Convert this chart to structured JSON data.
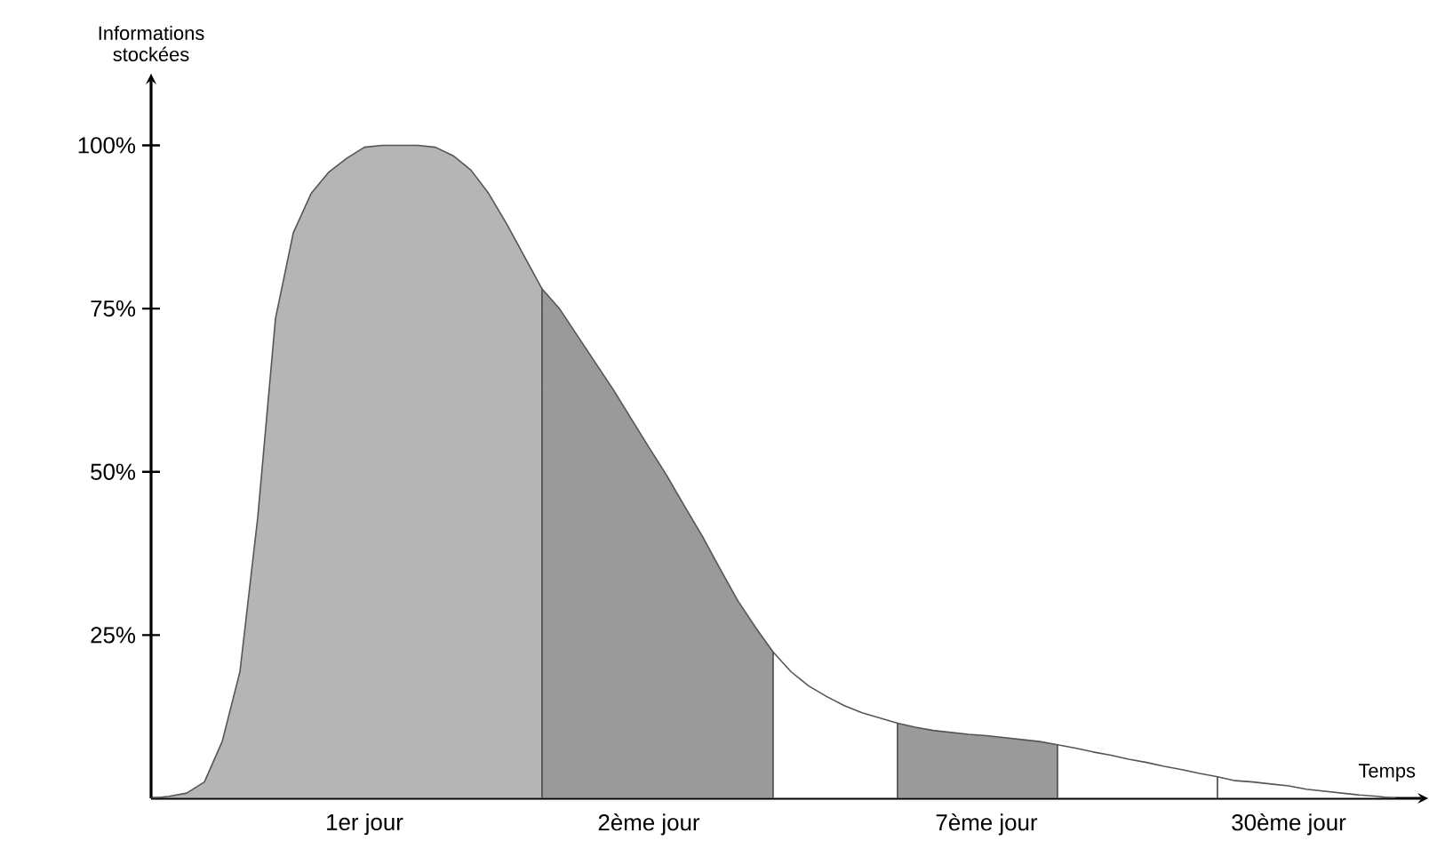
{
  "chart_data": {
    "type": "area",
    "ylabel": "Informations stockées",
    "xlabel": "Temps",
    "categories": [
      null,
      null,
      null,
      null,
      null,
      null,
      null,
      null,
      null,
      null,
      null,
      null,
      "1er jour",
      null,
      null,
      null,
      null,
      null,
      null,
      null,
      null,
      null,
      null,
      null,
      null,
      null,
      null,
      null,
      "2ème jour",
      null,
      null,
      null,
      null,
      null,
      null,
      null,
      null,
      null,
      null,
      null,
      null,
      null,
      null,
      null,
      null,
      null,
      null,
      "7ème jour",
      null,
      null,
      null,
      null,
      null,
      null,
      null,
      null,
      null,
      null,
      null,
      null,
      null,
      null,
      null,
      null,
      "30ème jour",
      null,
      null,
      null,
      null,
      null,
      null
    ],
    "ylim": [
      0,
      110
    ],
    "yticks": [
      {
        "value": 25,
        "label": "25%"
      },
      {
        "value": 50,
        "label": "50%"
      },
      {
        "value": 75,
        "label": "75%"
      },
      {
        "value": 100,
        "label": "100%"
      }
    ],
    "series": [
      {
        "color": "#b5b5b5",
        "values": [
          0,
          0.3,
          0.8,
          2.5,
          8.7,
          19.4,
          43,
          73.5,
          86.6,
          92.6,
          95.9,
          98,
          99.7,
          100,
          100,
          100,
          99.7,
          98.4,
          96.2,
          92.6,
          88,
          83,
          78,
          null,
          null,
          null,
          null,
          null,
          null,
          null,
          null,
          null,
          null,
          null,
          null,
          null,
          null,
          null,
          null,
          null,
          null,
          null,
          null,
          null,
          null,
          null,
          null,
          null,
          null,
          null,
          null,
          null,
          null,
          null,
          null,
          null,
          null,
          null,
          null,
          null,
          null,
          null,
          null,
          null,
          null,
          null,
          null,
          null,
          null,
          null,
          null
        ]
      },
      {
        "color": "#9a9a9a",
        "values": [
          null,
          null,
          null,
          null,
          null,
          null,
          null,
          null,
          null,
          null,
          null,
          null,
          null,
          null,
          null,
          null,
          null,
          null,
          null,
          null,
          null,
          null,
          78,
          74.9,
          70.8,
          66.7,
          62.6,
          58.2,
          53.8,
          49.5,
          44.8,
          40.2,
          35.2,
          30.3,
          26.2,
          22.4,
          null,
          null,
          null,
          null,
          null,
          null,
          null,
          null,
          null,
          null,
          null,
          null,
          null,
          null,
          null,
          null,
          null,
          null,
          null,
          null,
          null,
          null,
          null,
          null,
          null,
          null,
          null,
          null,
          null,
          null,
          null,
          null,
          null,
          null,
          null
        ]
      },
      {
        "color": "#ffffff",
        "values": [
          null,
          null,
          null,
          null,
          null,
          null,
          null,
          null,
          null,
          null,
          null,
          null,
          null,
          null,
          null,
          null,
          null,
          null,
          null,
          null,
          null,
          null,
          null,
          null,
          null,
          null,
          null,
          null,
          null,
          null,
          null,
          null,
          null,
          null,
          null,
          22.4,
          19.4,
          17.2,
          15.6,
          14.2,
          13.1,
          12.3,
          11.5,
          null,
          null,
          null,
          null,
          null,
          null,
          null,
          null,
          null,
          null,
          null,
          null,
          null,
          null,
          null,
          null,
          null,
          null,
          null,
          null,
          null,
          null,
          null,
          null,
          null,
          null,
          null,
          null
        ]
      },
      {
        "color": "#9a9a9a",
        "values": [
          null,
          null,
          null,
          null,
          null,
          null,
          null,
          null,
          null,
          null,
          null,
          null,
          null,
          null,
          null,
          null,
          null,
          null,
          null,
          null,
          null,
          null,
          null,
          null,
          null,
          null,
          null,
          null,
          null,
          null,
          null,
          null,
          null,
          null,
          null,
          null,
          null,
          null,
          null,
          null,
          null,
          null,
          11.5,
          10.9,
          10.4,
          10.1,
          9.8,
          9.6,
          9.3,
          9,
          8.7,
          8.2,
          null,
          null,
          null,
          null,
          null,
          null,
          null,
          null,
          null,
          null,
          null,
          null,
          null,
          null,
          null,
          null,
          null,
          null,
          null
        ]
      },
      {
        "color": "#ffffff",
        "values": [
          null,
          null,
          null,
          null,
          null,
          null,
          null,
          null,
          null,
          null,
          null,
          null,
          null,
          null,
          null,
          null,
          null,
          null,
          null,
          null,
          null,
          null,
          null,
          null,
          null,
          null,
          null,
          null,
          null,
          null,
          null,
          null,
          null,
          null,
          null,
          null,
          null,
          null,
          null,
          null,
          null,
          null,
          null,
          null,
          null,
          null,
          null,
          null,
          null,
          null,
          null,
          8.2,
          7.7,
          7.1,
          6.6,
          6,
          5.5,
          4.9,
          4.4,
          3.8,
          3.3,
          null,
          null,
          null,
          null,
          null,
          null,
          null,
          null,
          null,
          null
        ]
      },
      {
        "color": "#ffffff",
        "values": [
          null,
          null,
          null,
          null,
          null,
          null,
          null,
          null,
          null,
          null,
          null,
          null,
          null,
          null,
          null,
          null,
          null,
          null,
          null,
          null,
          null,
          null,
          null,
          null,
          null,
          null,
          null,
          null,
          null,
          null,
          null,
          null,
          null,
          null,
          null,
          null,
          null,
          null,
          null,
          null,
          null,
          null,
          null,
          null,
          null,
          null,
          null,
          null,
          null,
          null,
          null,
          null,
          null,
          null,
          null,
          null,
          null,
          null,
          null,
          null,
          3.3,
          2.7,
          2.5,
          2.2,
          1.9,
          1.4,
          1.1,
          0.8,
          0.5,
          0.3,
          0
        ]
      }
    ]
  }
}
